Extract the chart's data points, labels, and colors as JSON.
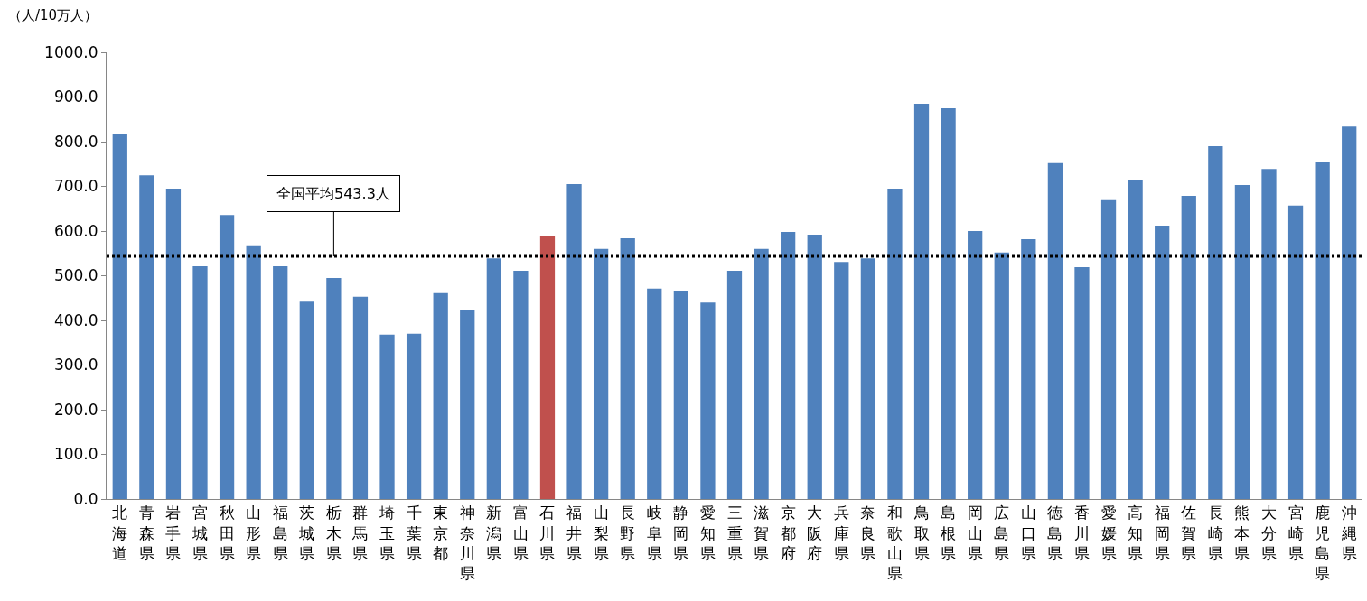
{
  "chart_data": {
    "type": "bar",
    "ylabel": "（人/10万人）",
    "categories": [
      "北海道",
      "青森県",
      "岩手県",
      "宮城県",
      "秋田県",
      "山形県",
      "福島県",
      "茨城県",
      "栃木県",
      "群馬県",
      "埼玉県",
      "千葉県",
      "東京都",
      "神奈川県",
      "新潟県",
      "富山県",
      "石川県",
      "福井県",
      "山梨県",
      "長野県",
      "岐阜県",
      "静岡県",
      "愛知県",
      "三重県",
      "滋賀県",
      "京都府",
      "大阪府",
      "兵庫県",
      "奈良県",
      "和歌山県",
      "鳥取県",
      "島根県",
      "岡山県",
      "広島県",
      "山口県",
      "徳島県",
      "香川県",
      "愛媛県",
      "高知県",
      "福岡県",
      "佐賀県",
      "長崎県",
      "熊本県",
      "大分県",
      "宮崎県",
      "鹿児島県",
      "沖縄県"
    ],
    "values": [
      816,
      725,
      695,
      521,
      636,
      566,
      521,
      442,
      495,
      453,
      368,
      370,
      461,
      422,
      539,
      511,
      588,
      705,
      560,
      584,
      471,
      465,
      440,
      511,
      560,
      598,
      592,
      531,
      539,
      695,
      885,
      875,
      600,
      552,
      582,
      752,
      519,
      669,
      713,
      612,
      679,
      790,
      703,
      739,
      657,
      754,
      834
    ],
    "colors": [
      "#4f81bd",
      "#4f81bd",
      "#4f81bd",
      "#4f81bd",
      "#4f81bd",
      "#4f81bd",
      "#4f81bd",
      "#4f81bd",
      "#4f81bd",
      "#4f81bd",
      "#4f81bd",
      "#4f81bd",
      "#4f81bd",
      "#4f81bd",
      "#4f81bd",
      "#4f81bd",
      "#c0504d",
      "#4f81bd",
      "#4f81bd",
      "#4f81bd",
      "#4f81bd",
      "#4f81bd",
      "#4f81bd",
      "#4f81bd",
      "#4f81bd",
      "#4f81bd",
      "#4f81bd",
      "#4f81bd",
      "#4f81bd",
      "#4f81bd",
      "#4f81bd",
      "#4f81bd",
      "#4f81bd",
      "#4f81bd",
      "#4f81bd",
      "#4f81bd",
      "#4f81bd",
      "#4f81bd",
      "#4f81bd",
      "#4f81bd",
      "#4f81bd",
      "#4f81bd",
      "#4f81bd",
      "#4f81bd",
      "#4f81bd",
      "#4f81bd",
      "#4f81bd"
    ],
    "ylim": [
      0,
      1000
    ],
    "yticks": [
      {
        "value": 0,
        "label": "0.0"
      },
      {
        "value": 100,
        "label": "100.0"
      },
      {
        "value": 200,
        "label": "200.0"
      },
      {
        "value": 300,
        "label": "300.0"
      },
      {
        "value": 400,
        "label": "400.0"
      },
      {
        "value": 500,
        "label": "500.0"
      },
      {
        "value": 600,
        "label": "600.0"
      },
      {
        "value": 700,
        "label": "700.0"
      },
      {
        "value": 800,
        "label": "800.0"
      },
      {
        "value": 900,
        "label": "900.0"
      },
      {
        "value": 1000,
        "label": "1000.0"
      }
    ],
    "grid": false,
    "ref_lines": [
      {
        "axis": "y",
        "value": 543.3,
        "label": "全国平均543.3人",
        "color": "#000000",
        "line_style": "dotted"
      }
    ]
  }
}
